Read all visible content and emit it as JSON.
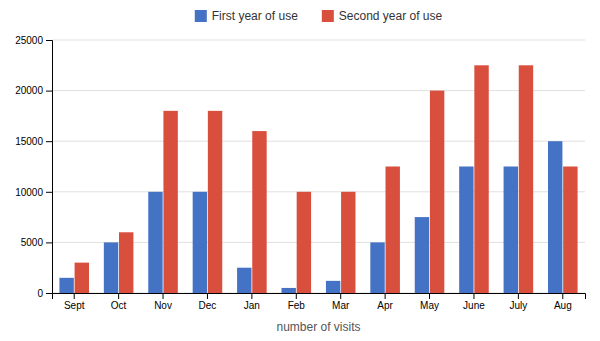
{
  "chart_data": {
    "type": "bar",
    "categories": [
      "Sept",
      "Oct",
      "Nov",
      "Dec",
      "Jan",
      "Feb",
      "Mar",
      "Apr",
      "May",
      "June",
      "July",
      "Aug"
    ],
    "series": [
      {
        "name": "First year of use",
        "color": "#4472C4",
        "values": [
          1500,
          5000,
          10000,
          10000,
          2500,
          500,
          1200,
          5000,
          7500,
          12500,
          12500,
          15000
        ]
      },
      {
        "name": "Second year of use",
        "color": "#D94F3D",
        "values": [
          3000,
          6000,
          18000,
          18000,
          16000,
          10000,
          10000,
          12500,
          20000,
          22500,
          22500,
          12500
        ]
      }
    ],
    "xlabel": "number of visits",
    "ylim": [
      0,
      25000
    ],
    "yticks": [
      0,
      5000,
      10000,
      15000,
      20000,
      25000
    ],
    "grid": true,
    "legend": "top"
  }
}
